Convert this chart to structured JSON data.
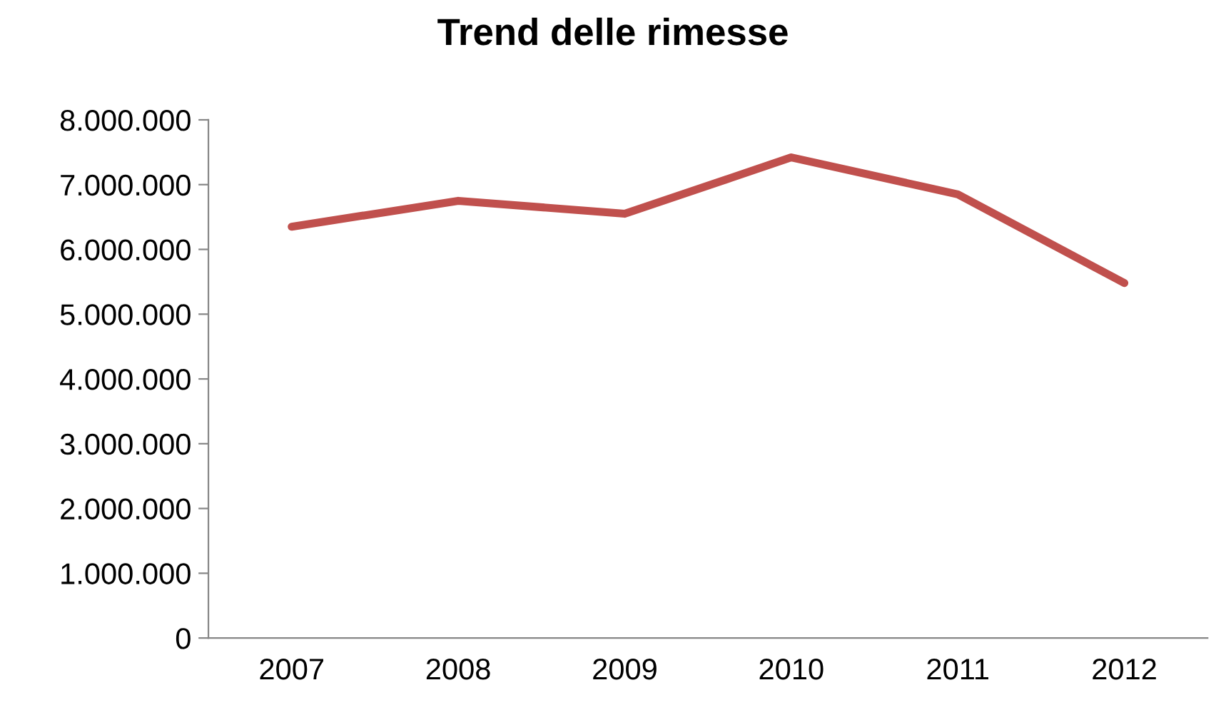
{
  "chart_data": {
    "type": "line",
    "title": "Trend delle rimesse",
    "categories": [
      "2007",
      "2008",
      "2009",
      "2010",
      "2011",
      "2012"
    ],
    "series": [
      {
        "color": "#c0504d",
        "values": [
          6350000,
          6750000,
          6550000,
          7420000,
          6850000,
          5480000
        ]
      }
    ],
    "ylim": [
      0,
      8000000
    ],
    "yticks": [
      0,
      {
        "value": 1000000,
        "label": "1.000.000"
      },
      {
        "value": 2000000,
        "label": "2.000.000"
      },
      {
        "value": 3000000,
        "label": "3.000.000"
      },
      {
        "value": 4000000,
        "label": "4.000.000"
      },
      {
        "value": 5000000,
        "label": "5.000.000"
      },
      {
        "value": 6000000,
        "label": "6.000.000"
      },
      {
        "value": 7000000,
        "label": "7.000.000"
      },
      {
        "value": 8000000,
        "label": "8.000.000"
      }
    ],
    "grid": false,
    "marker": "none",
    "line_style": "solid"
  }
}
